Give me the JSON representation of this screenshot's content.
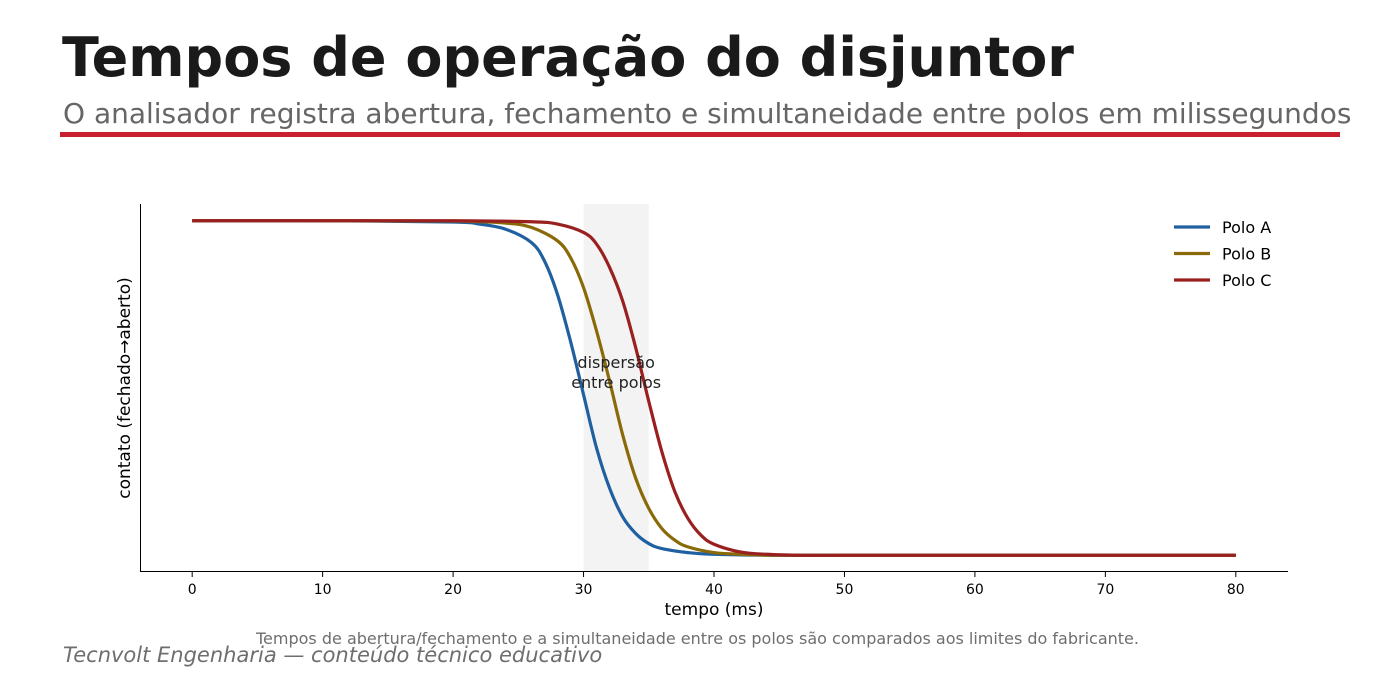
{
  "header": {
    "title": "Tempos de operação do disjuntor",
    "subtitle": "O analisador registra abertura, fechamento e simultaneidade entre polos em milissegundos"
  },
  "accent_color": "#c8202f",
  "chart_data": {
    "type": "line",
    "title": "",
    "xlabel": "tempo (ms)",
    "ylabel": "contato (fechado→aberto)",
    "xlim": [
      -4,
      84
    ],
    "ylim": [
      -0.05,
      1.05
    ],
    "xticks": [
      0,
      10,
      20,
      30,
      40,
      50,
      60,
      70,
      80
    ],
    "yticks_shown": false,
    "grid": false,
    "legend_position": "top-right",
    "series": [
      {
        "name": "Polo A",
        "color": "#2060a0",
        "x": [
          0,
          10,
          20,
          22,
          24,
          26,
          27,
          28,
          29,
          30,
          31,
          32,
          33,
          34,
          35,
          36,
          38,
          40,
          45,
          50,
          60,
          70,
          80
        ],
        "y": [
          1.0,
          1.0,
          0.996,
          0.99,
          0.975,
          0.935,
          0.88,
          0.78,
          0.64,
          0.48,
          0.32,
          0.2,
          0.115,
          0.065,
          0.035,
          0.02,
          0.008,
          0.003,
          0.0,
          0.0,
          0.0,
          0.0,
          0.0
        ]
      },
      {
        "name": "Polo B",
        "color": "#8a6a08",
        "x": [
          0,
          10,
          20,
          24,
          26,
          28,
          29,
          30,
          31,
          32,
          33,
          34,
          35,
          36,
          37,
          38,
          40,
          42,
          45,
          50,
          60,
          70,
          80
        ],
        "y": [
          1.0,
          1.0,
          0.999,
          0.993,
          0.98,
          0.94,
          0.89,
          0.8,
          0.67,
          0.52,
          0.36,
          0.23,
          0.14,
          0.08,
          0.045,
          0.025,
          0.008,
          0.003,
          0.0,
          0.0,
          0.0,
          0.0,
          0.0
        ]
      },
      {
        "name": "Polo C",
        "color": "#9a2020",
        "x": [
          0,
          10,
          20,
          26,
          28,
          30,
          31,
          32,
          33,
          34,
          35,
          36,
          37,
          38,
          39,
          40,
          42,
          44,
          47,
          50,
          60,
          70,
          80
        ],
        "y": [
          1.0,
          1.0,
          1.0,
          0.997,
          0.99,
          0.965,
          0.93,
          0.86,
          0.76,
          0.62,
          0.46,
          0.31,
          0.19,
          0.11,
          0.06,
          0.033,
          0.01,
          0.003,
          0.0,
          0.0,
          0.0,
          0.0,
          0.0
        ]
      }
    ],
    "shaded_band": {
      "x": [
        30,
        35
      ],
      "color": "#f3f3f3"
    },
    "annotation": {
      "lines": [
        "dispersão",
        "entre polos"
      ],
      "x": 32.5,
      "y": 0.55
    }
  },
  "caption": "Tempos de abertura/fechamento e a simultaneidade entre os polos são comparados aos limites do fabricante.",
  "footer": "Tecnvolt Engenharia — conteúdo técnico educativo"
}
